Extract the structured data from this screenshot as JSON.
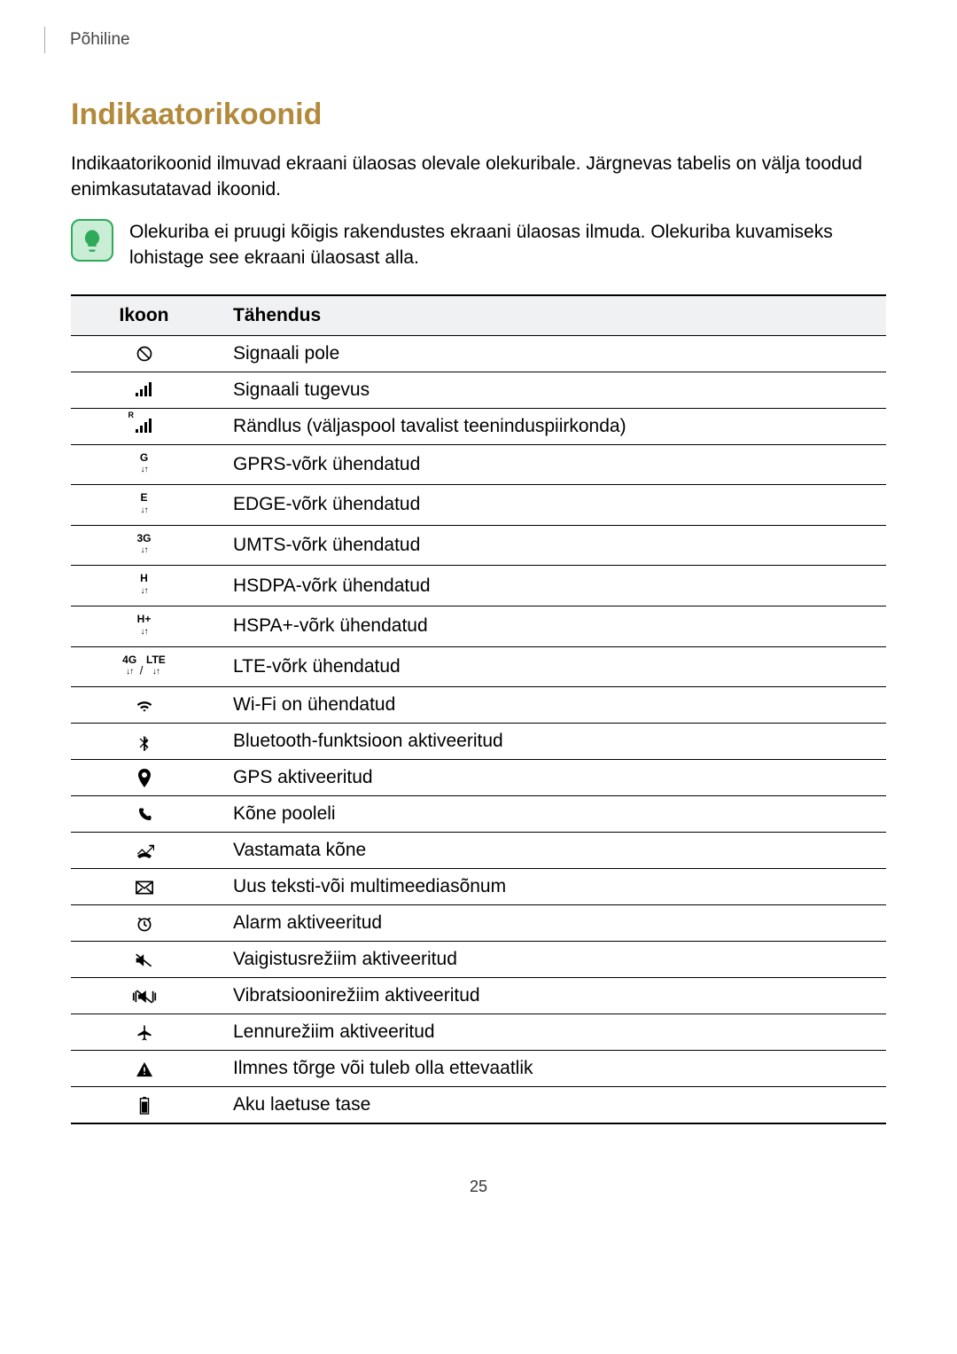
{
  "breadcrumb": "Põhiline",
  "title": "Indikaatorikoonid",
  "title_color": "#b38a3c",
  "intro": "Indikaatorikoonid ilmuvad ekraani ülaosas olevale olekuribale. Järgnevas tabelis on välja toodud enimkasutatavad ikoonid.",
  "note": "Olekuriba ei pruugi kõigis rakendustes ekraani ülaosas ilmuda. Olekuriba kuvamiseks lohistage see ekraani ülaosast alla.",
  "table": {
    "head_icon": "Ikoon",
    "head_meaning": "Tähendus",
    "rows": [
      {
        "icon": "no-signal",
        "meaning": "Signaali pole"
      },
      {
        "icon": "signal",
        "meaning": "Signaali tugevus"
      },
      {
        "icon": "roaming",
        "meaning": "Rändlus (väljaspool tavalist teeninduspiirkonda)"
      },
      {
        "icon": "gprs",
        "meaning": "GPRS-võrk ühendatud"
      },
      {
        "icon": "edge",
        "meaning": "EDGE-võrk ühendatud"
      },
      {
        "icon": "3g",
        "meaning": "UMTS-võrk ühendatud"
      },
      {
        "icon": "hsdpa",
        "meaning": "HSDPA-võrk ühendatud"
      },
      {
        "icon": "hspa",
        "meaning": "HSPA+-võrk ühendatud"
      },
      {
        "icon": "lte",
        "meaning": "LTE-võrk ühendatud"
      },
      {
        "icon": "wifi",
        "meaning": "Wi-Fi on ühendatud"
      },
      {
        "icon": "bluetooth",
        "meaning": "Bluetooth-funktsioon aktiveeritud"
      },
      {
        "icon": "gps",
        "meaning": "GPS aktiveeritud"
      },
      {
        "icon": "call",
        "meaning": "Kõne pooleli"
      },
      {
        "icon": "missed",
        "meaning": "Vastamata kõne"
      },
      {
        "icon": "message",
        "meaning": "Uus teksti-või multimeediasõnum"
      },
      {
        "icon": "alarm",
        "meaning": "Alarm aktiveeritud"
      },
      {
        "icon": "mute",
        "meaning": "Vaigistusrežiim aktiveeritud"
      },
      {
        "icon": "vibrate",
        "meaning": "Vibratsioonirežiim aktiveeritud"
      },
      {
        "icon": "airplane",
        "meaning": "Lennurežiim aktiveeritud"
      },
      {
        "icon": "error",
        "meaning": "Ilmnes tõrge või tuleb olla ettevaatlik"
      },
      {
        "icon": "battery",
        "meaning": "Aku laetuse tase"
      }
    ]
  },
  "page_number": "25"
}
